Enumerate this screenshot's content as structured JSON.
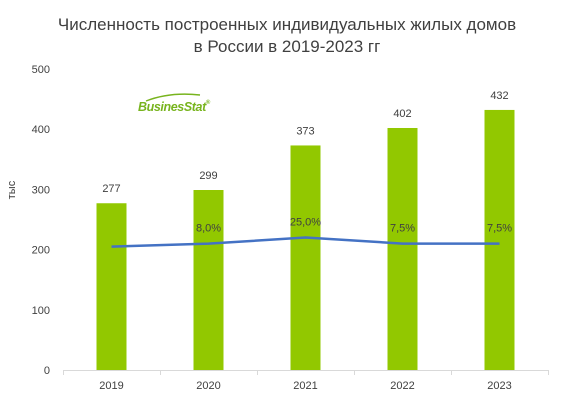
{
  "title_lines": [
    "Численность  построенных  индивидуальных  жилых домов",
    "в России в 2019-2023 гг"
  ],
  "logo_text": "BusinesStat",
  "logo_mark": "®",
  "colors": {
    "bar": "#92c800",
    "line": "#4472c4",
    "axis": "#d9d9d9",
    "text": "#404040",
    "logo": "#78b41e"
  },
  "chart_data": {
    "type": "bar",
    "title": "Численность  построенных  индивидуальных  жилых домов в России в 2019-2023 гг",
    "ylabel": "тыс",
    "xlabel": "",
    "ylim": [
      0,
      500
    ],
    "yticks": [
      0,
      100,
      200,
      300,
      400,
      500
    ],
    "ytick_labels": [
      "0",
      "100",
      "200",
      "300",
      "400",
      "500"
    ],
    "categories": [
      "2019",
      "2020",
      "2021",
      "2022",
      "2023"
    ],
    "values": [
      277,
      299,
      373,
      402,
      432
    ],
    "value_labels": [
      "277",
      "299",
      "373",
      "402",
      "432"
    ],
    "growth_line": {
      "type": "line",
      "values": [
        205,
        210,
        220,
        210,
        210
      ],
      "labels": [
        "",
        "8,0%",
        "25,0%",
        "7,5%",
        "7,5%"
      ]
    },
    "grid": false,
    "legend": "none"
  }
}
